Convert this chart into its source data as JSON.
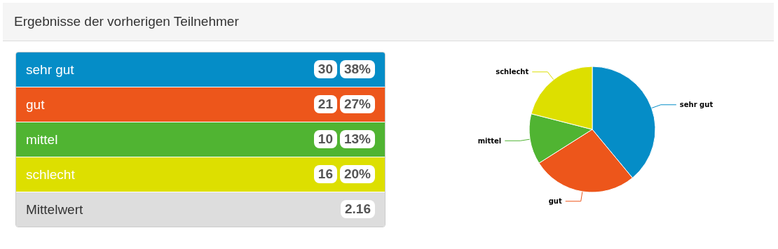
{
  "chart_data": {
    "type": "pie",
    "title": "Ergebnisse der vorherigen Teilnehmer",
    "categories": [
      "sehr gut",
      "gut",
      "mittel",
      "schlecht"
    ],
    "values": [
      39,
      27,
      13,
      21
    ],
    "colors": [
      "#058dc7",
      "#ed561b",
      "#50b432",
      "#dddf00"
    ],
    "annotations": [
      "30",
      "38%",
      "21",
      "27%",
      "10",
      "13%",
      "16",
      "20%",
      "Mittelwert",
      "2.16"
    ]
  }
}
